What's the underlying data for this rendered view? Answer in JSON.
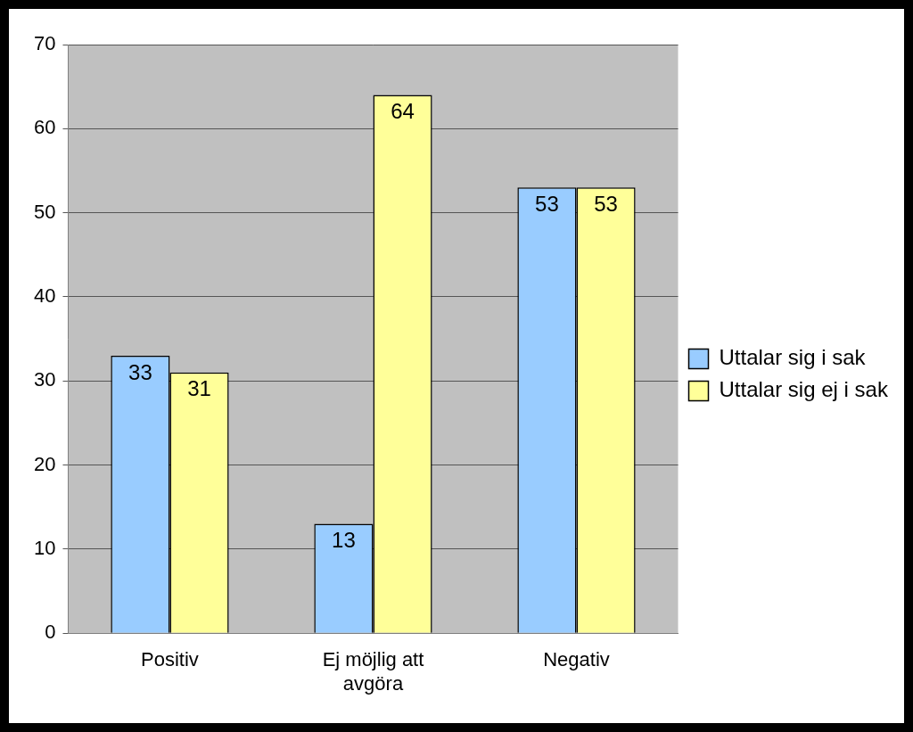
{
  "chart_data": {
    "type": "bar",
    "categories": [
      "Positiv",
      "Ej möjlig att avgöra",
      "Negativ"
    ],
    "series": [
      {
        "name": "Uttalar sig i sak",
        "color": "#99ccff",
        "values": [
          33,
          13,
          53
        ]
      },
      {
        "name": "Uttalar sig ej i sak",
        "color": "#ffff99",
        "values": [
          31,
          64,
          53
        ]
      }
    ],
    "ylim": [
      0,
      70
    ],
    "yticks": [
      0,
      10,
      20,
      30,
      40,
      50,
      60,
      70
    ],
    "grid": true,
    "legend": "right",
    "data_labels": true
  }
}
